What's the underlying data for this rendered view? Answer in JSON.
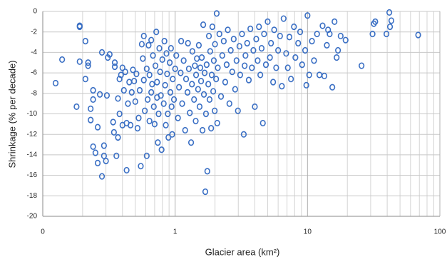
{
  "chart_data": {
    "type": "scatter",
    "x_label": "Glacier area (km²)",
    "y_label": "Shrinkage (% per decade)",
    "xlog": true,
    "grid": true,
    "minor_grid": true,
    "color": "#3a6fc4",
    "xlim": [
      0.1,
      100
    ],
    "ylim": [
      -20,
      0
    ],
    "xticks": [
      {
        "value": 0.1,
        "label": "0"
      },
      1,
      10,
      100
    ],
    "yticks": [
      -20,
      -18,
      -16,
      -14,
      -12,
      -10,
      -8,
      -6,
      -4,
      -2,
      0
    ],
    "x": [
      0.125,
      0.14,
      0.18,
      0.19,
      0.19,
      0.19,
      0.21,
      0.21,
      0.22,
      0.22,
      0.23,
      0.23,
      0.24,
      0.24,
      0.24,
      0.25,
      0.26,
      0.26,
      0.27,
      0.28,
      0.28,
      0.29,
      0.29,
      0.3,
      0.305,
      0.31,
      0.32,
      0.34,
      0.345,
      0.35,
      0.35,
      0.36,
      0.37,
      0.37,
      0.38,
      0.38,
      0.39,
      0.4,
      0.4,
      0.41,
      0.42,
      0.43,
      0.43,
      0.44,
      0.45,
      0.46,
      0.47,
      0.48,
      0.49,
      0.5,
      0.51,
      0.52,
      0.53,
      0.54,
      0.55,
      0.56,
      0.57,
      0.58,
      0.58,
      0.59,
      0.61,
      0.61,
      0.62,
      0.63,
      0.64,
      0.64,
      0.66,
      0.66,
      0.67,
      0.68,
      0.69,
      0.7,
      0.71,
      0.72,
      0.73,
      0.73,
      0.74,
      0.75,
      0.76,
      0.77,
      0.78,
      0.79,
      0.8,
      0.82,
      0.83,
      0.84,
      0.85,
      0.86,
      0.87,
      0.88,
      0.89,
      0.91,
      0.92,
      0.93,
      0.94,
      0.95,
      0.96,
      0.98,
      1.0,
      1.02,
      1.05,
      1.07,
      1.1,
      1.11,
      1.13,
      1.16,
      1.19,
      1.21,
      1.24,
      1.25,
      1.27,
      1.29,
      1.32,
      1.34,
      1.35,
      1.39,
      1.41,
      1.43,
      1.44,
      1.46,
      1.49,
      1.51,
      1.53,
      1.55,
      1.57,
      1.59,
      1.61,
      1.63,
      1.65,
      1.67,
      1.69,
      1.71,
      1.73,
      1.75,
      1.78,
      1.8,
      1.82,
      1.84,
      1.87,
      1.89,
      1.91,
      1.94,
      1.96,
      1.99,
      2.0,
      2.04,
      2.06,
      2.08,
      2.1,
      2.16,
      2.22,
      2.27,
      2.33,
      2.39,
      2.45,
      2.5,
      2.57,
      2.63,
      2.7,
      2.77,
      2.84,
      2.91,
      2.98,
      3.06,
      3.1,
      3.2,
      3.3,
      3.35,
      3.4,
      3.5,
      3.6,
      3.7,
      3.8,
      3.9,
      4.0,
      4.1,
      4.2,
      4.3,
      4.4,
      4.5,
      4.6,
      4.7,
      4.85,
      5.0,
      5.2,
      5.3,
      5.5,
      5.6,
      5.8,
      6.0,
      6.2,
      6.4,
      6.6,
      6.9,
      7.1,
      7.3,
      7.5,
      7.9,
      8.1,
      8.5,
      8.8,
      9.1,
      9.6,
      9.8,
      10.0,
      10.3,
      10.8,
      11.2,
      11.8,
      12.3,
      13,
      13.4,
      14,
      14.3,
      14.7,
      15.4,
      16,
      16.6,
      17,
      17.8,
      19.4,
      25.6,
      31,
      31.7,
      32.5,
      39.5,
      41.5,
      42,
      43,
      68.6
    ],
    "values": [
      -7.0,
      -4.7,
      -9.3,
      -4.9,
      -1.5,
      -1.4,
      -2.9,
      -6.6,
      -5.3,
      -5.0,
      -9.5,
      -10.6,
      -13.2,
      -8.6,
      -7.7,
      -13.8,
      -14.8,
      -11.3,
      -8.1,
      -4.0,
      -16.1,
      -13.1,
      -14.1,
      -14.6,
      -8.2,
      -4.5,
      -4.2,
      -10.8,
      -11.8,
      -5.4,
      -5.0,
      -14.1,
      -12.3,
      -8.5,
      -6.6,
      -10.0,
      -6.2,
      -11.1,
      -5.5,
      -7.7,
      -5.9,
      -15.5,
      -10.9,
      -9.0,
      -6.9,
      -11.1,
      -7.9,
      -5.7,
      -6.8,
      -8.8,
      -6.1,
      -11.4,
      -10.4,
      -7.7,
      -15.1,
      -3.2,
      -4.6,
      -2.4,
      -6.7,
      -9.7,
      -5.6,
      -14.1,
      -8.6,
      -3.3,
      -10.7,
      -6.2,
      -7.9,
      -2.8,
      -7.1,
      -4.3,
      -9.3,
      -11.0,
      -5.3,
      -2.0,
      -8.4,
      -6.9,
      -12.8,
      -10.0,
      -3.6,
      -5.9,
      -8.2,
      -13.5,
      -4.7,
      -9.0,
      -2.9,
      -7.2,
      -11.1,
      -4.1,
      -6.1,
      -10.0,
      -12.3,
      -5.0,
      -7.9,
      -3.6,
      -9.3,
      -12.0,
      -6.6,
      -8.6,
      -5.6,
      -4.3,
      -10.4,
      -7.4,
      -6.0,
      -2.9,
      -9.0,
      -4.8,
      -11.6,
      -6.6,
      -7.9,
      -3.1,
      -5.6,
      -9.9,
      -12.8,
      -7.1,
      -3.9,
      -8.6,
      -5.3,
      -10.7,
      -6.2,
      -4.6,
      -7.6,
      -3.3,
      -9.3,
      -5.5,
      -6.8,
      -4.5,
      -11.6,
      -1.3,
      -8.1,
      -6.0,
      -17.6,
      -10.0,
      -5.2,
      -15.6,
      -7.1,
      -2.4,
      -8.6,
      -3.9,
      -11.4,
      -6.2,
      -1.5,
      -7.8,
      -4.8,
      -9.7,
      -3.2,
      -6.6,
      -0.2,
      -10.9,
      -5.5,
      -2.2,
      -8.3,
      -4.3,
      -2.9,
      -6.9,
      -5.2,
      -1.8,
      -9.0,
      -3.8,
      -5.9,
      -2.7,
      -7.6,
      -4.8,
      -9.7,
      -3.4,
      -6.2,
      -2.2,
      -12.0,
      -5.3,
      -4.3,
      -3.1,
      -6.7,
      -1.7,
      -5.5,
      -3.8,
      -9.3,
      -2.7,
      -4.8,
      -1.5,
      -6.2,
      -3.6,
      -10.9,
      -2.2,
      -5.2,
      -1.0,
      -4.5,
      -3.1,
      -6.9,
      -1.8,
      -5.5,
      -3.8,
      -2.4,
      -7.3,
      -0.7,
      -4.1,
      -5.5,
      -2.5,
      -6.6,
      -1.5,
      -4.5,
      -3.1,
      -2.0,
      -5.2,
      -3.8,
      -7.2,
      -0.4,
      -6.2,
      -2.9,
      -4.8,
      -2.2,
      -6.2,
      -1.4,
      -6.3,
      -3.3,
      -1.8,
      -2.2,
      -7.4,
      -1.0,
      -4.5,
      -3.8,
      -2.4,
      -2.8,
      -5.3,
      -2.2,
      -1.2,
      -1.0,
      -2.2,
      -0.1,
      -1.5,
      -0.9,
      -2.3
    ]
  }
}
